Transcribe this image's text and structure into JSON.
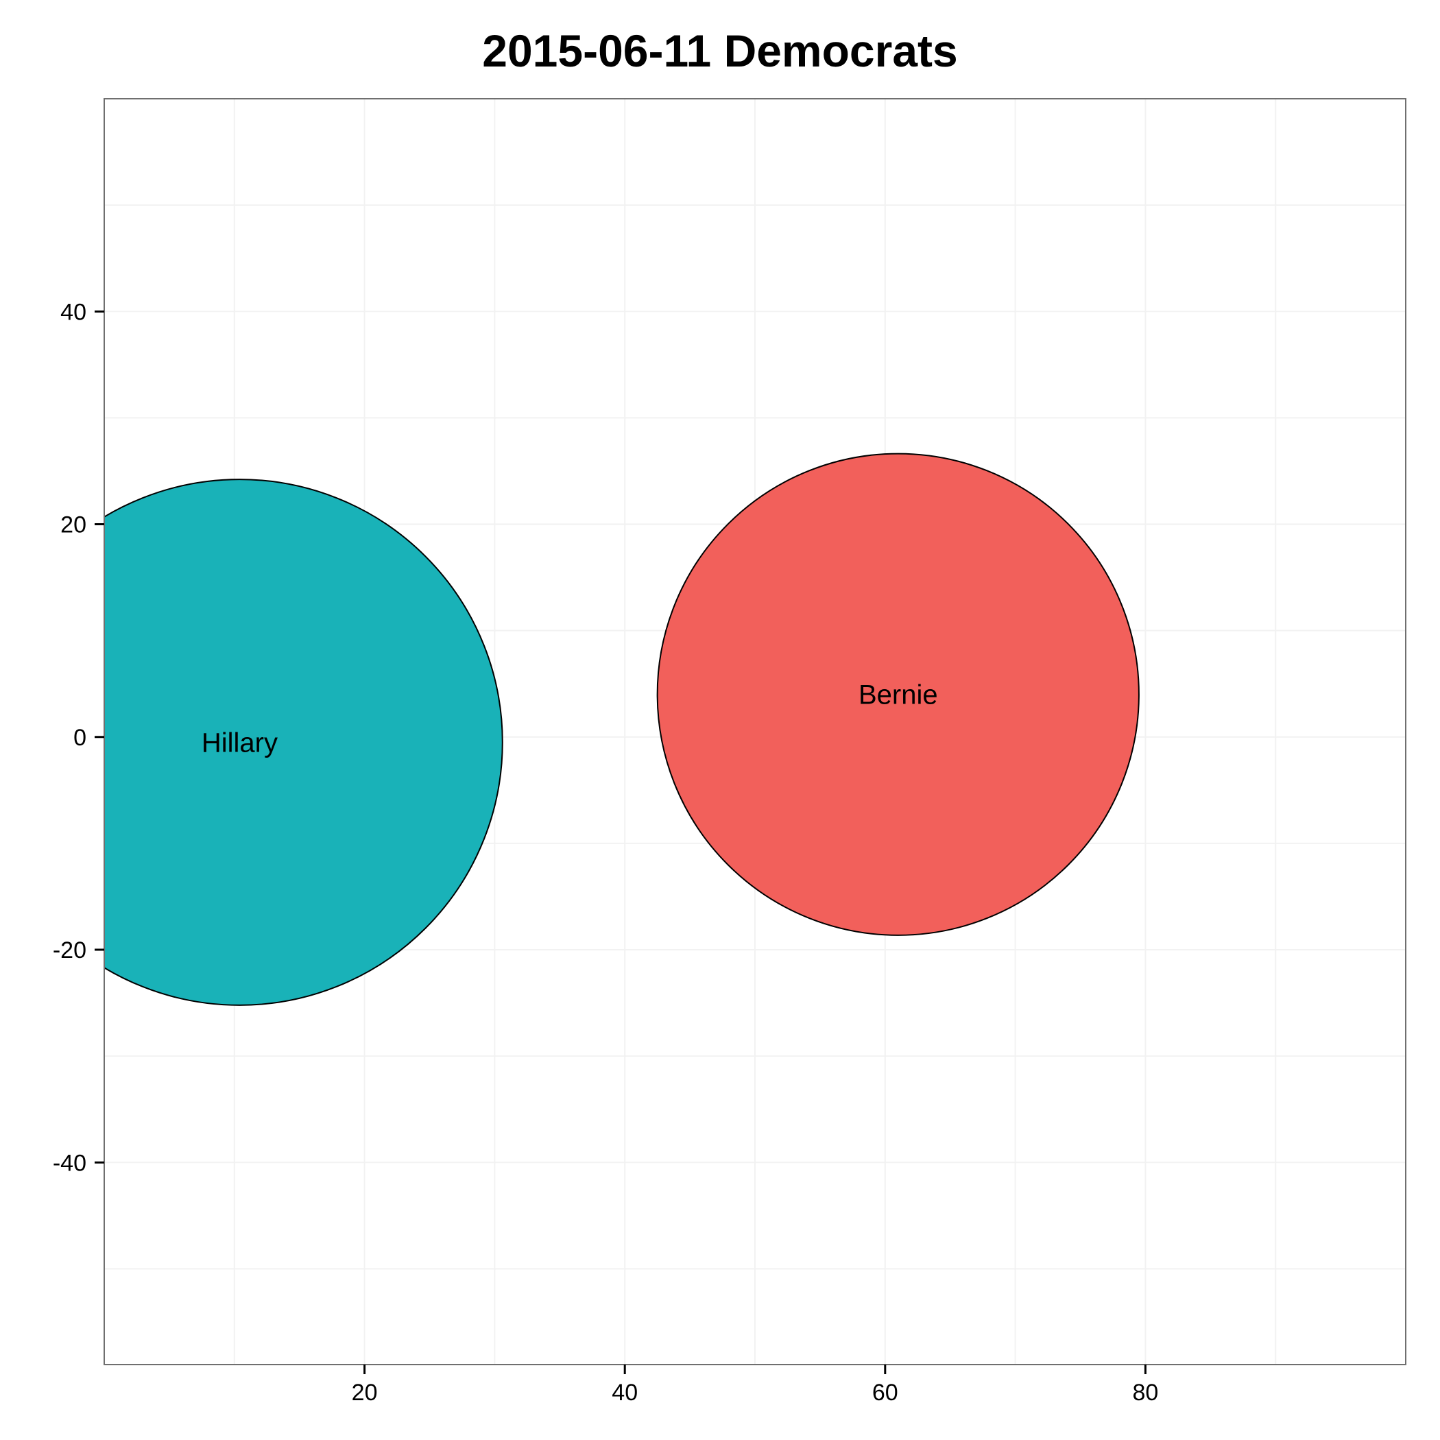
{
  "chart_data": {
    "type": "scatter",
    "title": "2015-06-11  Democrats",
    "xlabel": "",
    "ylabel": "",
    "xlim": [
      0,
      100
    ],
    "ylim": [
      -59,
      60
    ],
    "x_ticks": [
      20,
      40,
      60,
      80
    ],
    "y_ticks": [
      -40,
      -20,
      0,
      20,
      40
    ],
    "grid": true,
    "series": [
      {
        "name": "Hillary",
        "x": 10.4,
        "y": -0.5,
        "radius": 20.2,
        "color": "#19b2b8"
      },
      {
        "name": "Bernie",
        "x": 61.0,
        "y": 4.0,
        "radius": 18.5,
        "color": "#f2605b"
      }
    ]
  }
}
